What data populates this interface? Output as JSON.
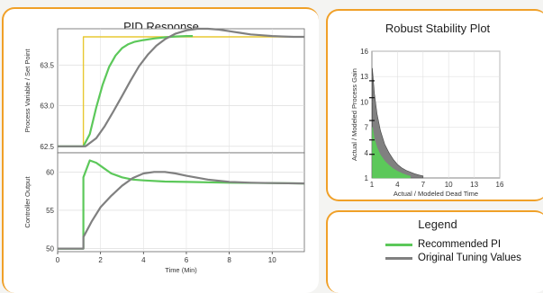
{
  "pid_panel": {
    "title": "PID Response"
  },
  "robust_panel": {
    "title": "Robust Stability Plot"
  },
  "legend_panel": {
    "title": "Legend",
    "items": [
      {
        "label": "Recommended PI",
        "color": "#5cc85a"
      },
      {
        "label": "Original Tuning Values",
        "color": "#808080"
      }
    ]
  },
  "chart_data": [
    {
      "type": "line",
      "title": "PID Response",
      "subplot": "upper",
      "xlabel": "",
      "ylabel": "Process Variable / Set Point",
      "xlim": [
        0,
        11.5
      ],
      "ylim": [
        62.42,
        63.95
      ],
      "y_ticks": [
        62.5,
        63.0,
        63.5
      ],
      "y_tick_labels": [
        "62.5",
        "63.0",
        "63.5"
      ],
      "grid": true,
      "series": [
        {
          "key": "setpoint",
          "color": "#e8c832",
          "x": [
            0,
            1.2,
            1.2,
            11.5
          ],
          "y": [
            62.5,
            62.5,
            63.85,
            63.85
          ]
        },
        {
          "key": "recommended",
          "color": "#5cc85a",
          "x": [
            0,
            1.2,
            1.5,
            1.8,
            2.1,
            2.4,
            2.7,
            3.0,
            3.3,
            3.6,
            4.0,
            4.5,
            5.0,
            5.5,
            6.0,
            6.3
          ],
          "y": [
            62.5,
            62.5,
            62.65,
            62.98,
            63.26,
            63.48,
            63.62,
            63.71,
            63.76,
            63.79,
            63.81,
            63.83,
            63.845,
            63.855,
            63.86,
            63.86
          ]
        },
        {
          "key": "original",
          "color": "#808080",
          "x": [
            0,
            1.3,
            1.8,
            2.2,
            2.6,
            3.0,
            3.4,
            3.8,
            4.2,
            4.6,
            5.0,
            5.5,
            6.0,
            6.5,
            7.0,
            7.5,
            8.0,
            8.5,
            9.0,
            9.5,
            10.0,
            10.5,
            11.0,
            11.5
          ],
          "y": [
            62.5,
            62.5,
            62.6,
            62.75,
            62.93,
            63.12,
            63.31,
            63.49,
            63.63,
            63.74,
            63.82,
            63.89,
            63.93,
            63.95,
            63.95,
            63.94,
            63.92,
            63.9,
            63.88,
            63.87,
            63.86,
            63.855,
            63.85,
            63.85
          ]
        }
      ]
    },
    {
      "type": "line",
      "subplot": "lower",
      "xlabel": "Time (Min)",
      "ylabel": "Controller Output",
      "xlim": [
        0,
        11.5
      ],
      "ylim": [
        49.6,
        62.5
      ],
      "x_ticks": [
        0,
        2,
        4,
        6,
        8,
        10
      ],
      "x_tick_labels": [
        "0",
        "2",
        "4",
        "6",
        "8",
        "10"
      ],
      "y_ticks": [
        50,
        55,
        60
      ],
      "y_tick_labels": [
        "50",
        "55",
        "60"
      ],
      "grid": true,
      "series": [
        {
          "key": "recommended",
          "color": "#5cc85a",
          "x": [
            0,
            1.2,
            1.2,
            1.5,
            1.8,
            2.1,
            2.5,
            3.0,
            3.5,
            4.0,
            5.0,
            6.0,
            8.0,
            10.0,
            11.5
          ],
          "y": [
            50,
            50,
            59.3,
            61.5,
            61.2,
            60.6,
            59.8,
            59.3,
            59.0,
            58.9,
            58.75,
            58.7,
            58.6,
            58.55,
            58.5
          ]
        },
        {
          "key": "original",
          "color": "#808080",
          "x": [
            0,
            1.2,
            1.2,
            1.6,
            2.0,
            2.5,
            3.0,
            3.5,
            4.0,
            4.5,
            5.0,
            5.5,
            6.0,
            7.0,
            8.0,
            9.0,
            10.0,
            11.5
          ],
          "y": [
            50,
            50,
            51.5,
            53.6,
            55.4,
            56.9,
            58.2,
            59.2,
            59.8,
            60.0,
            60.0,
            59.8,
            59.5,
            59.0,
            58.7,
            58.6,
            58.55,
            58.5
          ]
        }
      ]
    },
    {
      "type": "area",
      "title": "Robust Stability Plot",
      "xlabel": "Actual / Modeled Dead Time",
      "ylabel": "Actual / Modeled Process Gain",
      "xlim": [
        1,
        16
      ],
      "ylim": [
        1,
        16
      ],
      "x_ticks": [
        1,
        4,
        7,
        10,
        13,
        16
      ],
      "x_tick_labels": [
        "1",
        "4",
        "7",
        "10",
        "13",
        "16"
      ],
      "y_ticks": [
        1,
        4,
        7,
        10,
        13,
        16
      ],
      "y_tick_labels": [
        "1",
        "4",
        "7",
        "10",
        "13",
        "16"
      ],
      "grid": true,
      "series": [
        {
          "key": "original",
          "color": "#808080",
          "x": [
            1.05,
            1.3,
            1.6,
            2.0,
            2.5,
            3.0,
            3.5,
            4.0,
            4.5,
            5.0,
            5.5,
            6.0,
            6.5,
            7.0
          ],
          "y": [
            14.0,
            11.0,
            8.6,
            6.6,
            5.0,
            4.0,
            3.2,
            2.6,
            2.2,
            1.9,
            1.7,
            1.5,
            1.35,
            1.25
          ]
        },
        {
          "key": "recommended",
          "color": "#5cc85a",
          "x": [
            1.05,
            1.3,
            1.6,
            2.0,
            2.5,
            3.0,
            3.5,
            4.0,
            4.5,
            5.0,
            5.5
          ],
          "y": [
            7.0,
            5.6,
            4.6,
            3.7,
            3.0,
            2.5,
            2.1,
            1.8,
            1.55,
            1.35,
            1.2
          ]
        },
        {
          "key": "markers",
          "type": "scatter",
          "color": "#111111",
          "x": [
            1.0,
            1.0,
            1.0,
            1.0,
            1.0
          ],
          "y": [
            12.5,
            10.5,
            7.8,
            5.5,
            3.8
          ]
        }
      ]
    }
  ]
}
